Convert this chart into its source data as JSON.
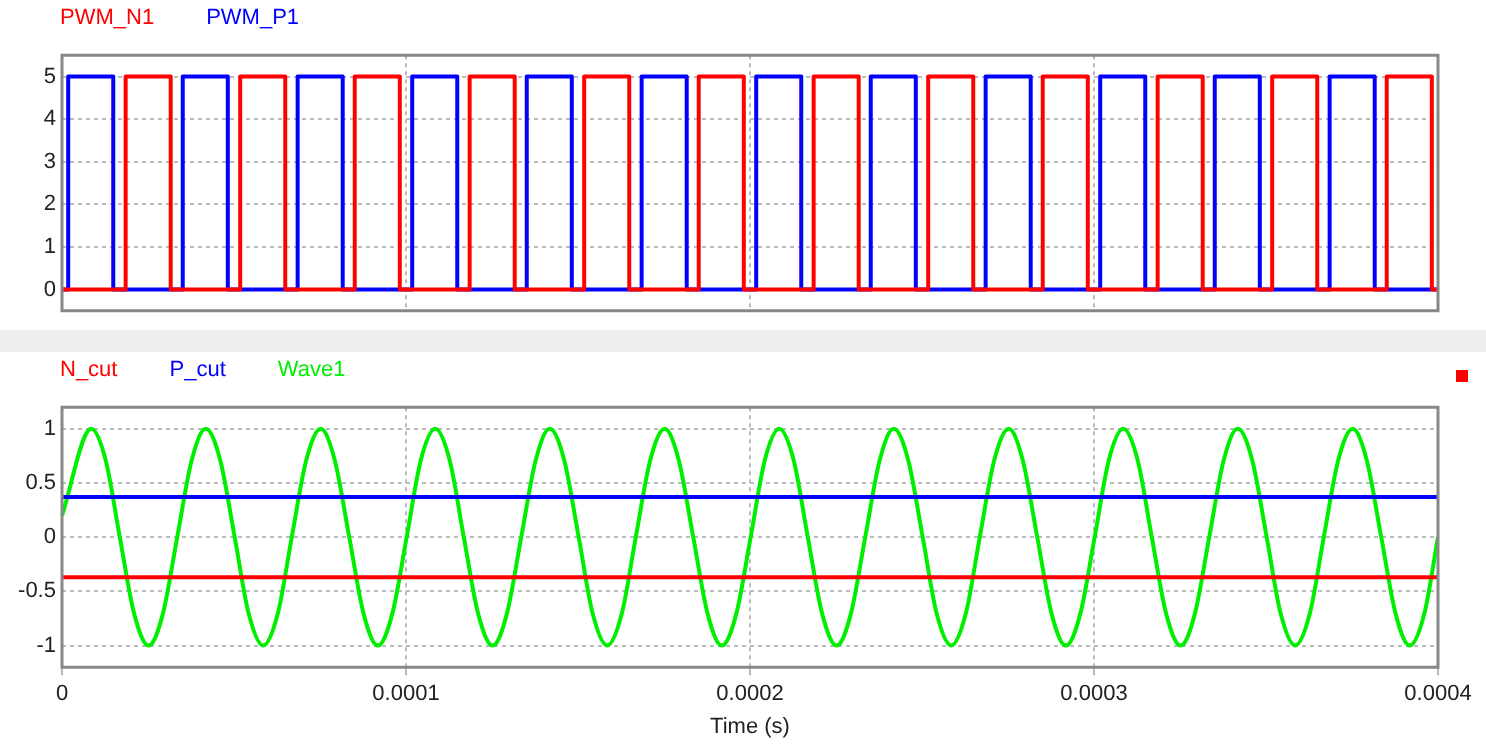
{
  "chart_data": [
    {
      "type": "step",
      "xlim": [
        0,
        0.0004
      ],
      "xticks": [
        0,
        0.0001,
        0.0002,
        0.0003,
        0.0004
      ],
      "ylim": [
        -0.5,
        5.5
      ],
      "yticks": [
        0,
        1,
        2,
        3,
        4,
        5
      ],
      "grid": true,
      "legend": "top left",
      "tick_labels": "y",
      "series": [
        {
          "name": "PWM_N1",
          "color": "#ff0000",
          "x": [
            0,
            1.85e-05,
            3.16e-05,
            5.18e-05,
            6.49e-05,
            8.51e-05,
            9.82e-05,
            0.0001185,
            0.0001316,
            0.0001518,
            0.0001649,
            0.0001851,
            0.0001982,
            0.0002185,
            0.0002316,
            0.0002518,
            0.0002649,
            0.0002851,
            0.0002982,
            0.0003185,
            0.0003316,
            0.0003518,
            0.0003649,
            0.0003851,
            0.0003982,
            0.0004
          ],
          "values": [
            0,
            5,
            0,
            5,
            0,
            5,
            0,
            5,
            0,
            5,
            0,
            5,
            0,
            5,
            0,
            5,
            0,
            5,
            0,
            5,
            0,
            5,
            0,
            5,
            0,
            0
          ]
        },
        {
          "name": "PWM_P1",
          "color": "#0000ff",
          "x": [
            0,
            1.8e-06,
            1.49e-05,
            3.51e-05,
            4.82e-05,
            6.85e-05,
            8.16e-05,
            0.0001018,
            0.0001149,
            0.0001351,
            0.0001482,
            0.0001685,
            0.0001816,
            0.0002018,
            0.0002149,
            0.0002351,
            0.0002482,
            0.0002685,
            0.0002816,
            0.0003018,
            0.0003149,
            0.0003351,
            0.0003482,
            0.0003685,
            0.0003816,
            0.0004
          ],
          "values": [
            0,
            5,
            0,
            5,
            0,
            5,
            0,
            5,
            0,
            5,
            0,
            5,
            0,
            5,
            0,
            5,
            0,
            5,
            0,
            5,
            0,
            5,
            0,
            5,
            0,
            0
          ]
        }
      ]
    },
    {
      "type": "line",
      "xlabel": "Time (s)",
      "xlim": [
        0,
        0.0004
      ],
      "xticks": [
        0,
        0.0001,
        0.0002,
        0.0003,
        0.0004
      ],
      "ylim": [
        -1.2,
        1.2
      ],
      "yticks": [
        -1,
        -0.5,
        0,
        0.5,
        1
      ],
      "grid": true,
      "legend": "top left",
      "series": [
        {
          "name": "N_cut",
          "color": "#ff0000",
          "x": [
            0,
            0.0004
          ],
          "values": [
            -0.37,
            -0.37
          ]
        },
        {
          "name": "P_cut",
          "color": "#0000ff",
          "x": [
            0,
            0.0004
          ],
          "values": [
            0.37,
            0.37
          ]
        },
        {
          "name": "Wave1",
          "color": "#00ee00",
          "x": [
            0,
            8.5e-06,
            1.27e-05,
            1.68e-05,
            2.1e-05,
            2.52e-05,
            2.93e-05,
            3.35e-05,
            3.77e-05,
            4.18e-05,
            4.6e-05,
            5.02e-05,
            5.43e-05,
            5.85e-05,
            6.27e-05,
            6.68e-05,
            7.1e-05,
            7.52e-05,
            7.93e-05,
            8.35e-05,
            8.77e-05,
            9.18e-05,
            9.6e-05,
            0.0001002,
            0.0001043,
            0.0001085,
            0.0001127,
            0.0001168,
            0.000121,
            0.0001252,
            0.0001293,
            0.0001335,
            0.0001377,
            0.0001418,
            0.000146,
            0.0001502,
            0.0001543,
            0.0001585,
            0.0001627,
            0.0001668,
            0.000171,
            0.0001752,
            0.0001793,
            0.0001835,
            0.0001877,
            0.0001918,
            0.000196,
            0.0002002,
            0.0002043,
            0.0002085,
            0.0002127,
            0.0002168,
            0.000221,
            0.0002252,
            0.0002293,
            0.0002335,
            0.0002377,
            0.0002418,
            0.000246,
            0.0002502,
            0.0002543,
            0.0002585,
            0.0002627,
            0.0002668,
            0.000271,
            0.0002752,
            0.0002793,
            0.0002835,
            0.0002877,
            0.0002918,
            0.000296,
            0.0003002,
            0.0003043,
            0.0003085,
            0.0003127,
            0.0003168,
            0.000321,
            0.0003252,
            0.0003293,
            0.0003335,
            0.0003377,
            0.0003418,
            0.000346,
            0.0003502,
            0.0003543,
            0.0003585,
            0.0003627,
            0.0003668,
            0.000371,
            0.0003752,
            0.0003793,
            0.0003835,
            0.0003877,
            0.0003918,
            0.000396,
            0.0004
          ],
          "values": [
            0.2,
            1,
            0.71,
            0,
            -0.71,
            -1,
            -0.71,
            0,
            0.71,
            1,
            0.71,
            0,
            -0.71,
            -1,
            -0.71,
            0,
            0.71,
            1,
            0.71,
            0,
            -0.71,
            -1,
            -0.71,
            0,
            0.71,
            1,
            0.71,
            0,
            -0.71,
            -1,
            -0.71,
            0,
            0.71,
            1,
            0.71,
            0,
            -0.71,
            -1,
            -0.71,
            0,
            0.71,
            1,
            0.71,
            0,
            -0.71,
            -1,
            -0.71,
            0,
            0.71,
            1,
            0.71,
            0,
            -0.71,
            -1,
            -0.71,
            0,
            0.71,
            1,
            0.71,
            0,
            -0.71,
            -1,
            -0.71,
            0,
            0.71,
            1,
            0.71,
            0,
            -0.71,
            -1,
            -0.71,
            0,
            0.71,
            1,
            0.71,
            0,
            -0.71,
            -1,
            -0.71,
            0,
            0.71,
            1,
            0.71,
            0,
            -0.71,
            -1,
            -0.71,
            0,
            0.71,
            1,
            0.71,
            0,
            -0.71,
            -1,
            -0.71,
            0
          ]
        }
      ]
    }
  ]
}
